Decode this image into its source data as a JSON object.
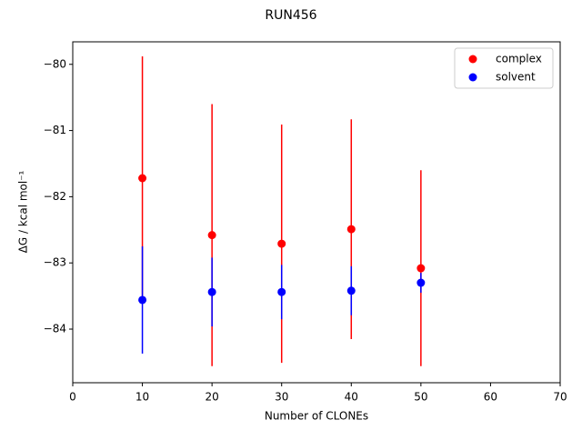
{
  "chart_data": {
    "type": "errorbar-scatter",
    "title": "RUN456",
    "xlabel": "Number of CLONEs",
    "ylabel": "ΔG / kcal mol⁻¹",
    "x": [
      10,
      20,
      30,
      40,
      50
    ],
    "series": [
      {
        "name": "complex",
        "color": "#ff0000",
        "values": [
          -81.72,
          -82.58,
          -82.71,
          -82.49,
          -83.08
        ],
        "errors": [
          1.84,
          1.98,
          1.8,
          1.66,
          1.48
        ]
      },
      {
        "name": "solvent",
        "color": "#0000ff",
        "values": [
          -83.56,
          -83.44,
          -83.44,
          -83.42,
          -83.3
        ],
        "errors": [
          0.81,
          0.52,
          0.41,
          0.37,
          0.15
        ]
      }
    ],
    "xlim": [
      0,
      70
    ],
    "xticks": [
      0,
      10,
      20,
      30,
      40,
      50,
      60,
      70
    ],
    "ylim": [
      -84.81,
      -79.66
    ],
    "yticks": [
      {
        "value": -84,
        "label": "−84"
      },
      {
        "value": -83,
        "label": "−83"
      },
      {
        "value": -82,
        "label": "−82"
      },
      {
        "value": -81,
        "label": "−81"
      },
      {
        "value": -80,
        "label": "−80"
      }
    ],
    "legend": "upper right"
  }
}
